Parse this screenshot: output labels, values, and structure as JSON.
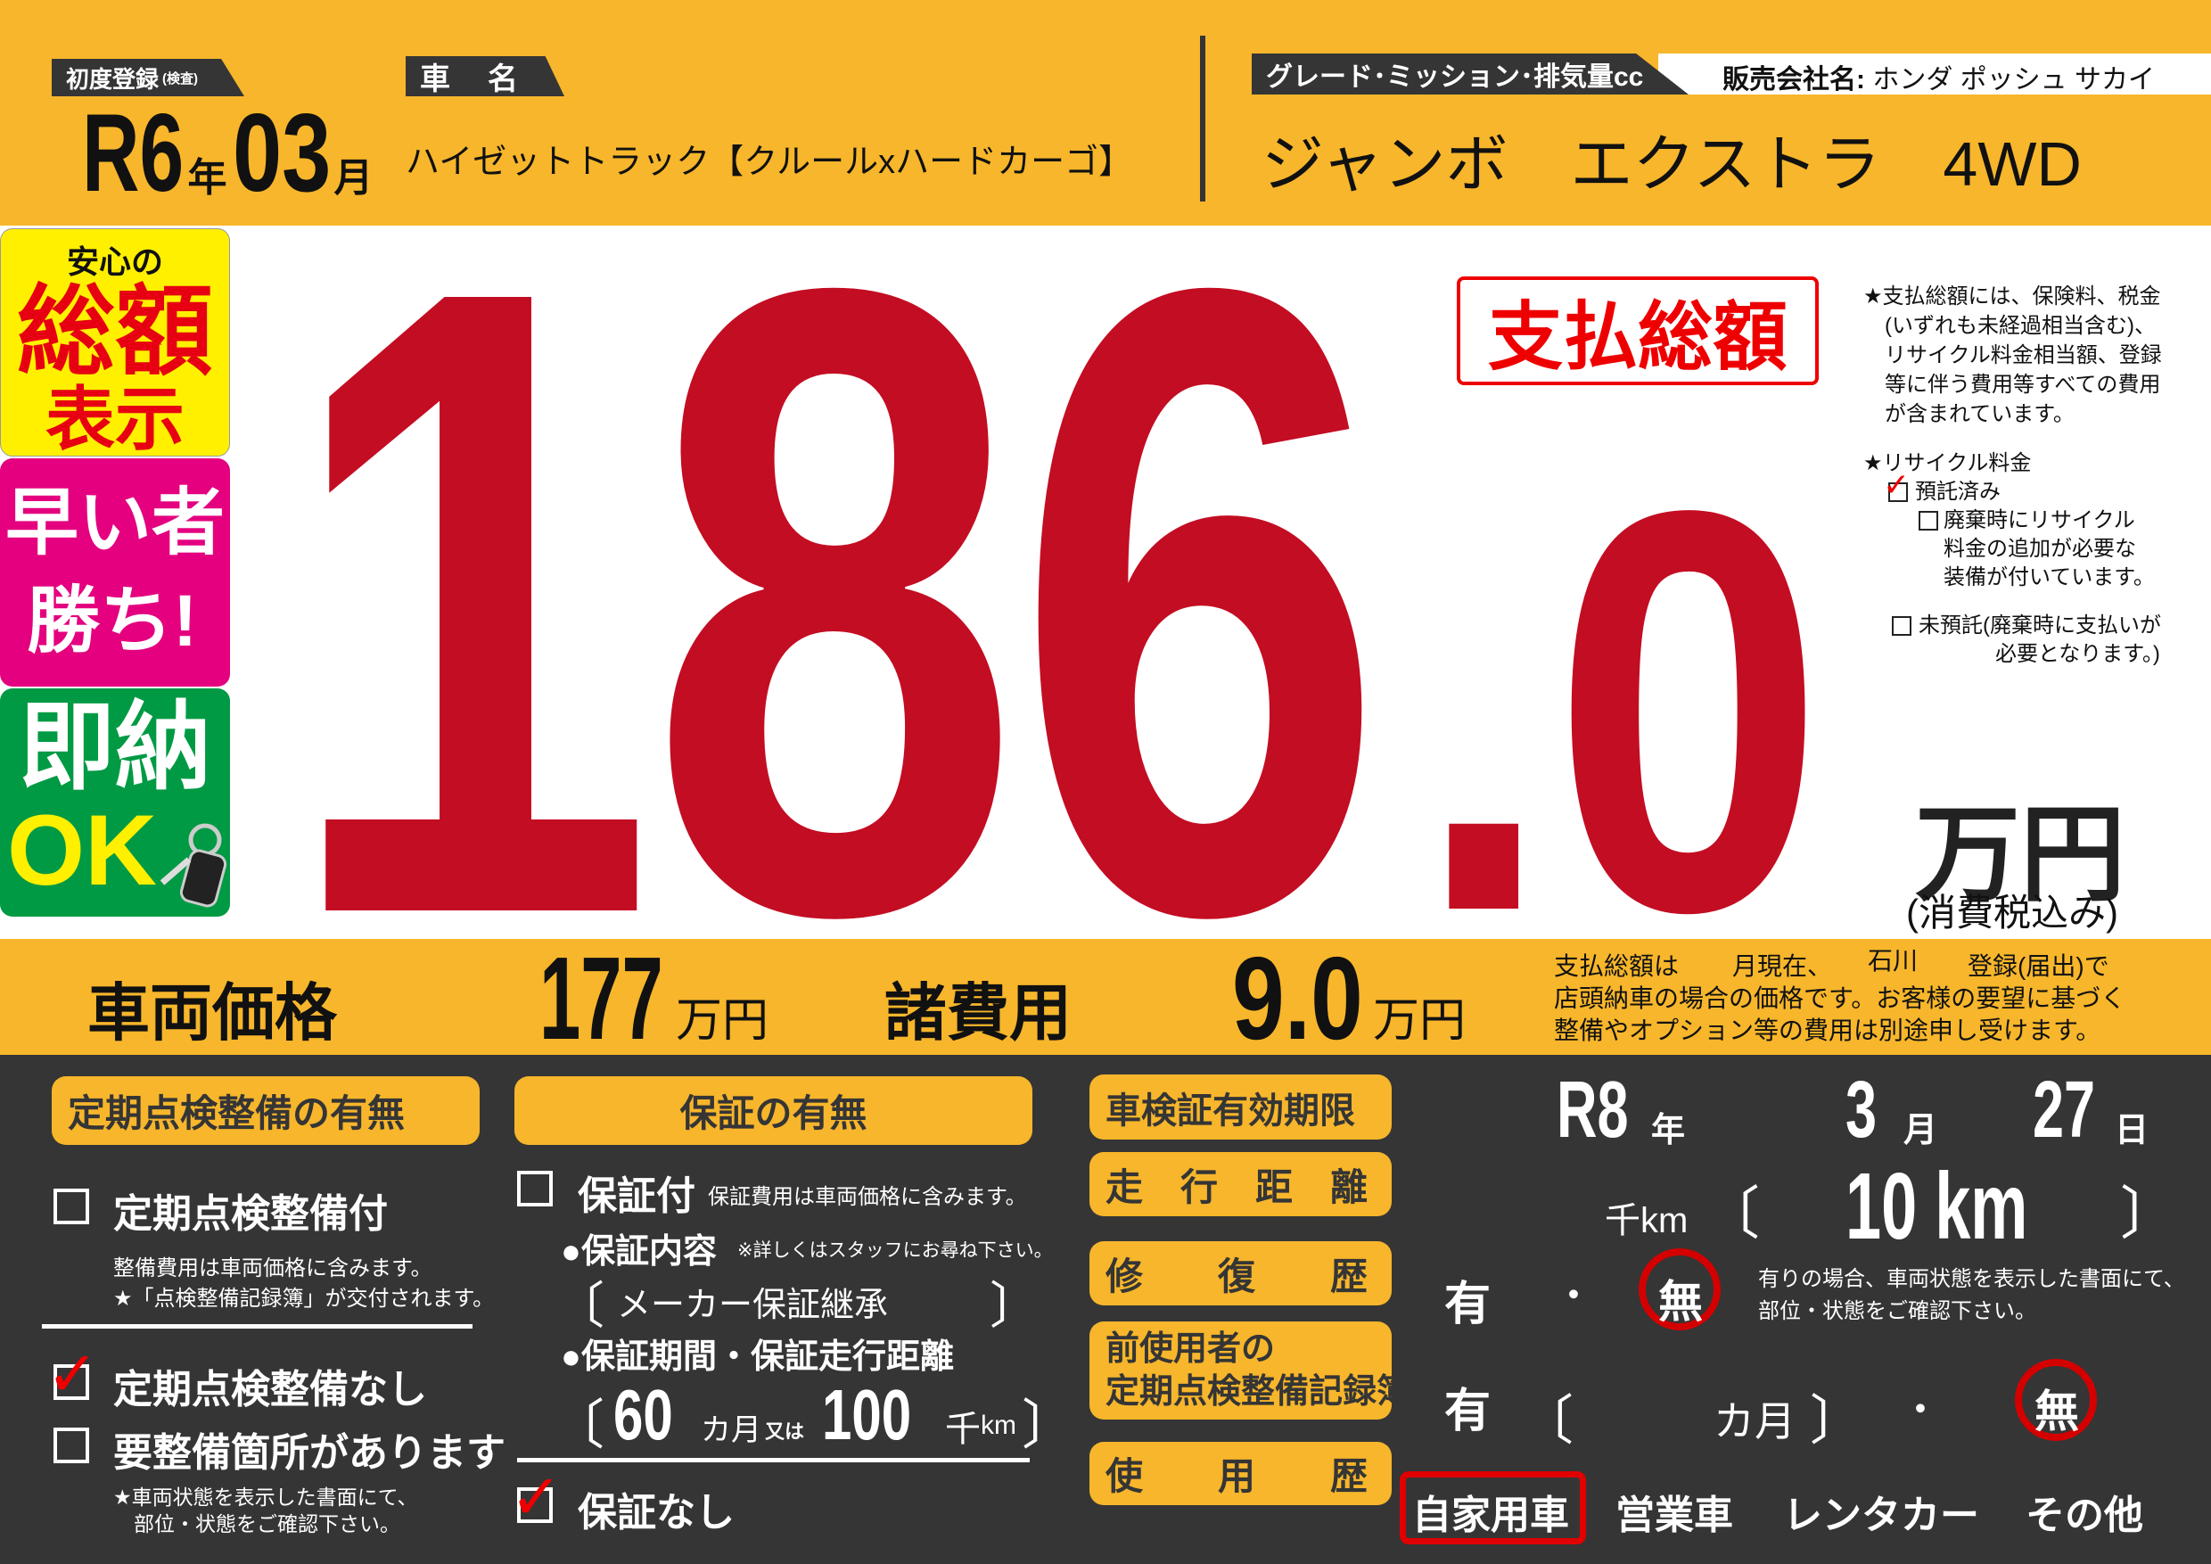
{
  "colors": {
    "yellow": "#f7b62b",
    "dark": "#353535",
    "price_red": "#c30d23",
    "mark_red": "#d40000"
  },
  "header": {
    "first_reg_label": "初度登録",
    "first_reg_sub": "(検査)",
    "first_reg_era_year": "R6",
    "year_unit": "年",
    "first_reg_month": "03",
    "month_unit": "月",
    "car_name_label": "車　名",
    "car_name": "ハイゼットトラック【クルールxハードカーゴ】",
    "grade_label": "グレード･ミッション･排気量cc",
    "dealer_label": "販売会社名:",
    "dealer_name": "ホンダ ポッシュ サカイ",
    "grade": "ジャンボ　エクストラ　4WD"
  },
  "badges": {
    "b1_top": "安心の",
    "b1_main": "総額",
    "b1_bottom": "表示",
    "b2_line1": "早い者",
    "b2_line2": "勝ち!",
    "b3_line1": "即納",
    "b3_line2": "OK",
    "b3_icon": "car-key-icon"
  },
  "price": {
    "total": "186.0",
    "total_label": "支払総額",
    "unit": "万円",
    "tax_note": "(消費税込み)",
    "notes": [
      "★支払総額には、保険料、税金",
      "(いずれも未経過相当含む)、",
      "リサイクル料金相当額、登録",
      "等に伴う費用等すべての費用",
      "が含まれています。"
    ],
    "recycle_title": "★リサイクル料金",
    "recycle_deposited": "預託済み",
    "recycle_deposited_checked": true,
    "recycle_extra": [
      "廃棄時にリサイクル",
      "料金の追加が必要な",
      "装備が付いています。"
    ],
    "recycle_extra_checked": false,
    "recycle_not": [
      "未預託(廃棄時に支払いが",
      "必要となります。)"
    ],
    "recycle_not_checked": false
  },
  "band": {
    "vehicle_price_label": "車両価格",
    "vehicle_price": "177",
    "vehicle_unit": "万円",
    "fees_label": "諸費用",
    "fees": "9.0",
    "fees_unit": "万円",
    "disclaimer_1a": "支払総額は",
    "disclaimer_1b": "月現在、",
    "prefecture": "石川",
    "disclaimer_1c": "登録(届出)で",
    "disclaimer_2": "店頭納車の場合の価格です。お客様の要望に基づく",
    "disclaimer_3": "整備やオプション等の費用は別途申し受けます。"
  },
  "inspection": {
    "title": "定期点検整備の有無",
    "opt_with": "定期点検整備付",
    "opt_with_checked": false,
    "with_note1": "整備費用は車両価格に含みます。",
    "with_note2": "★「点検整備記録簿」が交付されます。",
    "opt_without": "定期点検整備なし",
    "opt_without_checked": true,
    "opt_needs": "要整備箇所があります",
    "opt_needs_checked": false,
    "needs_note1": "★車両状態を表示した書面にて、",
    "needs_note2": "部位・状態をご確認下さい。"
  },
  "warranty": {
    "title": "保証の有無",
    "opt_with": "保証付",
    "opt_with_checked": false,
    "with_note": "保証費用は車両価格に含みます。",
    "content_label": "●保証内容",
    "content_note": "※詳しくはスタッフにお尋ね下さい。",
    "content": "メーカー保証継承",
    "period_label": "●保証期間・保証走行距離",
    "months": "60",
    "months_unit": "カ月",
    "or": "又は",
    "distance": "100",
    "distance_unit1": "千",
    "distance_unit2": "km",
    "opt_none": "保証なし",
    "opt_none_checked": true,
    "bracket_open": "〔",
    "bracket_close": "〕"
  },
  "details": {
    "inspection_expiry_label": "車検証有効期限",
    "expiry_year": "R8",
    "year_unit": "年",
    "expiry_month": "3",
    "month_unit": "月",
    "expiry_day": "27",
    "day_unit": "日",
    "mileage_label": "走　行　距　離",
    "mileage_unit_alt": "千km",
    "mileage": "10 km",
    "repair_label": "修　　復　　歴",
    "yes": "有",
    "dot": "・",
    "no": "無",
    "repair_selected": "無",
    "repair_note1": "有りの場合、車両状態を表示した書面にて、",
    "repair_note2": "部位・状態をご確認下さい。",
    "prev_record_label1": "前使用者の",
    "prev_record_label2": "定期点検整備記録簿",
    "months_unit": "カ月",
    "prev_record_selected": "無",
    "usage_label": "使　　用　　歴",
    "usage_options": [
      "自家用車",
      "営業車",
      "レンタカー",
      "その他"
    ],
    "usage_selected": "自家用車"
  }
}
